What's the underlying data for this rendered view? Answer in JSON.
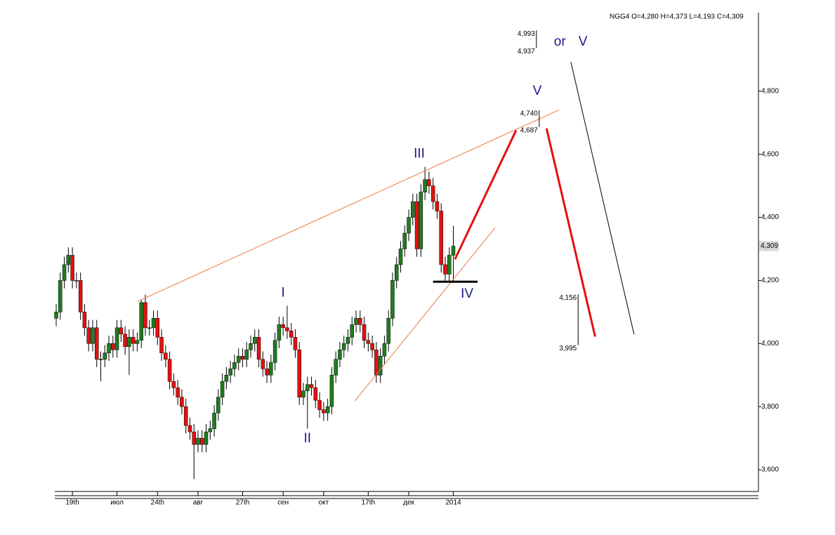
{
  "chart_data": {
    "type": "candlestick",
    "caption": "NGG4 O=4,280 H=4,373 L=4,193 C=4,309",
    "open": [
      4080,
      4100,
      4200,
      4250,
      4280,
      4200,
      4200,
      4100,
      4050,
      4000,
      4050,
      3950,
      3950,
      3970,
      4000,
      3980,
      4050,
      4030,
      3990,
      4020,
      4000,
      4010,
      4130,
      4050,
      4050,
      4080,
      4020,
      3970,
      3950,
      3880,
      3860,
      3830,
      3800,
      3740,
      3720,
      3680,
      3700,
      3680,
      3720,
      3730,
      3780,
      3830,
      3880,
      3900,
      3920,
      3940,
      3960,
      3950,
      3980,
      4000,
      4020,
      3950,
      3920,
      3900,
      3940,
      4010,
      4060,
      4050,
      4040,
      4020,
      3980,
      3830,
      3850,
      3870,
      3860,
      3820,
      3790,
      3780,
      3800,
      3900,
      3950,
      3980,
      4000,
      4020,
      4060,
      4080,
      4060,
      4010,
      4000,
      3980,
      3900,
      3960,
      4000,
      4080,
      4200,
      4250,
      4300,
      4350,
      4400,
      4450,
      4300,
      4480,
      4520,
      4500,
      4450,
      4420,
      4250,
      4220,
      4280
    ],
    "high": [
      4125,
      4225,
      4275,
      4305,
      4305,
      4225,
      4225,
      4125,
      4075,
      4075,
      4075,
      3975,
      3995,
      4025,
      4025,
      4075,
      4075,
      4055,
      4045,
      4045,
      4035,
      4140,
      4155,
      4075,
      4105,
      4105,
      4045,
      3995,
      3975,
      3905,
      3885,
      3855,
      3825,
      3765,
      3745,
      3725,
      3725,
      3745,
      3755,
      3805,
      3855,
      3905,
      3925,
      3945,
      3965,
      3985,
      3985,
      4005,
      4025,
      4045,
      4045,
      3975,
      3945,
      3965,
      4035,
      4085,
      4085,
      4120,
      4065,
      4045,
      4005,
      3875,
      3895,
      3895,
      3885,
      3845,
      3815,
      3825,
      3925,
      3975,
      4005,
      4025,
      4045,
      4085,
      4105,
      4105,
      4085,
      4035,
      4025,
      4005,
      3985,
      4025,
      4105,
      4225,
      4275,
      4325,
      4375,
      4425,
      4475,
      4475,
      4505,
      4560,
      4545,
      4525,
      4475,
      4445,
      4275,
      4305,
      4373
    ],
    "low": [
      4055,
      4075,
      4175,
      4225,
      4175,
      4175,
      4075,
      4025,
      3975,
      3975,
      3925,
      3880,
      3925,
      3945,
      3955,
      3955,
      4005,
      3965,
      3900,
      3975,
      3975,
      3985,
      4025,
      4025,
      4025,
      3995,
      3945,
      3925,
      3855,
      3835,
      3805,
      3775,
      3715,
      3695,
      3570,
      3655,
      3655,
      3655,
      3695,
      3705,
      3755,
      3805,
      3855,
      3875,
      3895,
      3915,
      3925,
      3925,
      3955,
      3975,
      3925,
      3895,
      3875,
      3875,
      3915,
      3985,
      4025,
      4015,
      3995,
      3955,
      3805,
      3805,
      3730,
      3835,
      3795,
      3765,
      3755,
      3755,
      3775,
      3875,
      3925,
      3955,
      3975,
      3995,
      4035,
      4035,
      3985,
      3975,
      3955,
      3875,
      3875,
      3935,
      3975,
      4055,
      4175,
      4225,
      4275,
      4325,
      4375,
      4275,
      4275,
      4455,
      4475,
      4425,
      4395,
      4225,
      4195,
      4195,
      4193
    ],
    "close": [
      4100,
      4200,
      4250,
      4280,
      4200,
      4200,
      4100,
      4050,
      4000,
      4050,
      3950,
      3950,
      3970,
      4000,
      3980,
      4050,
      4030,
      3990,
      4020,
      4000,
      4010,
      4130,
      4050,
      4050,
      4080,
      4020,
      3970,
      3950,
      3880,
      3860,
      3830,
      3800,
      3740,
      3720,
      3680,
      3700,
      3680,
      3720,
      3730,
      3780,
      3830,
      3880,
      3900,
      3920,
      3940,
      3960,
      3950,
      3980,
      4000,
      4020,
      3950,
      3920,
      3900,
      3940,
      4010,
      4060,
      4050,
      4040,
      4020,
      3980,
      3830,
      3850,
      3870,
      3860,
      3820,
      3790,
      3780,
      3800,
      3900,
      3950,
      3980,
      4000,
      4020,
      4060,
      4080,
      4060,
      4010,
      4000,
      3980,
      3900,
      3960,
      4000,
      4080,
      4200,
      4250,
      4300,
      4350,
      4400,
      4450,
      4300,
      4480,
      4520,
      4500,
      4450,
      4420,
      4250,
      4220,
      4280,
      4309
    ],
    "up_color": "#1e7d1e",
    "down_color": "#e41010",
    "last_price": {
      "value": 4309,
      "label": "4,309"
    },
    "xlim": [
      -0.35,
      173.3
    ],
    "ylim": [
      3531,
      5049
    ],
    "xticks": [
      {
        "value": 4,
        "label": "19th"
      },
      {
        "value": 15,
        "label": "июл"
      },
      {
        "value": 25,
        "label": "24th"
      },
      {
        "value": 35,
        "label": "авг"
      },
      {
        "value": 46,
        "label": "27th"
      },
      {
        "value": 56,
        "label": "сен"
      },
      {
        "value": 66,
        "label": "окт"
      },
      {
        "value": 77,
        "label": "17th"
      },
      {
        "value": 87,
        "label": "дек"
      },
      {
        "value": 98,
        "label": "2014"
      }
    ],
    "yticks": [
      {
        "value": 3600,
        "label": "3,600"
      },
      {
        "value": 3800,
        "label": "3,800"
      },
      {
        "value": 4000,
        "label": "4,000"
      },
      {
        "value": 4200,
        "label": "4,200"
      },
      {
        "value": 4400,
        "label": "4,400"
      },
      {
        "value": 4600,
        "label": "4,600"
      },
      {
        "value": 4800,
        "label": "4,800"
      }
    ],
    "waves": [
      {
        "text": "I",
        "x": 56,
        "y": 4160
      },
      {
        "text": "II",
        "x": 62,
        "y": 3698
      },
      {
        "text": "III",
        "x": 89.6,
        "y": 4600
      },
      {
        "text": "IV",
        "x": 101.4,
        "y": 4156
      },
      {
        "text": "V",
        "x": 118.7,
        "y": 4800
      },
      {
        "text": "or",
        "x": 124.3,
        "y": 4955
      },
      {
        "text": "V",
        "x": 130,
        "y": 4955
      }
    ],
    "targets": [
      {
        "x": 118.5,
        "top": {
          "value": 4993,
          "label": "4,993"
        },
        "bottom": {
          "value": 4937,
          "label": "4,937"
        }
      },
      {
        "x": 119.2,
        "top": {
          "value": 4740,
          "label": "4,740"
        },
        "bottom": {
          "value": 4687,
          "label": "4,687"
        }
      },
      {
        "x": 128.8,
        "top": {
          "value": 4156,
          "label": "4,156"
        },
        "bottom": {
          "value": 3995,
          "label": "3,995"
        }
      }
    ],
    "lines": [
      {
        "color": "#f07840",
        "width": 1,
        "x": [
          20,
          124
        ],
        "y": [
          4133,
          4740
        ]
      },
      {
        "color": "#f07840",
        "width": 1,
        "x": [
          73.7,
          108.3
        ],
        "y": [
          3818,
          4367
        ]
      },
      {
        "color": "#000000",
        "width": 3,
        "x": [
          93,
          104
        ],
        "y": [
          4196,
          4196
        ]
      },
      {
        "color": "#e41010",
        "width": 3,
        "x": [
          98.4,
          113.5
        ],
        "y": [
          4267,
          4676
        ]
      },
      {
        "color": "#e41010",
        "width": 3,
        "x": [
          121,
          133
        ],
        "y": [
          4682,
          4022
        ]
      },
      {
        "color": "#000000",
        "width": 1,
        "x": [
          127,
          142.6
        ],
        "y": [
          4893,
          4029
        ]
      }
    ]
  }
}
